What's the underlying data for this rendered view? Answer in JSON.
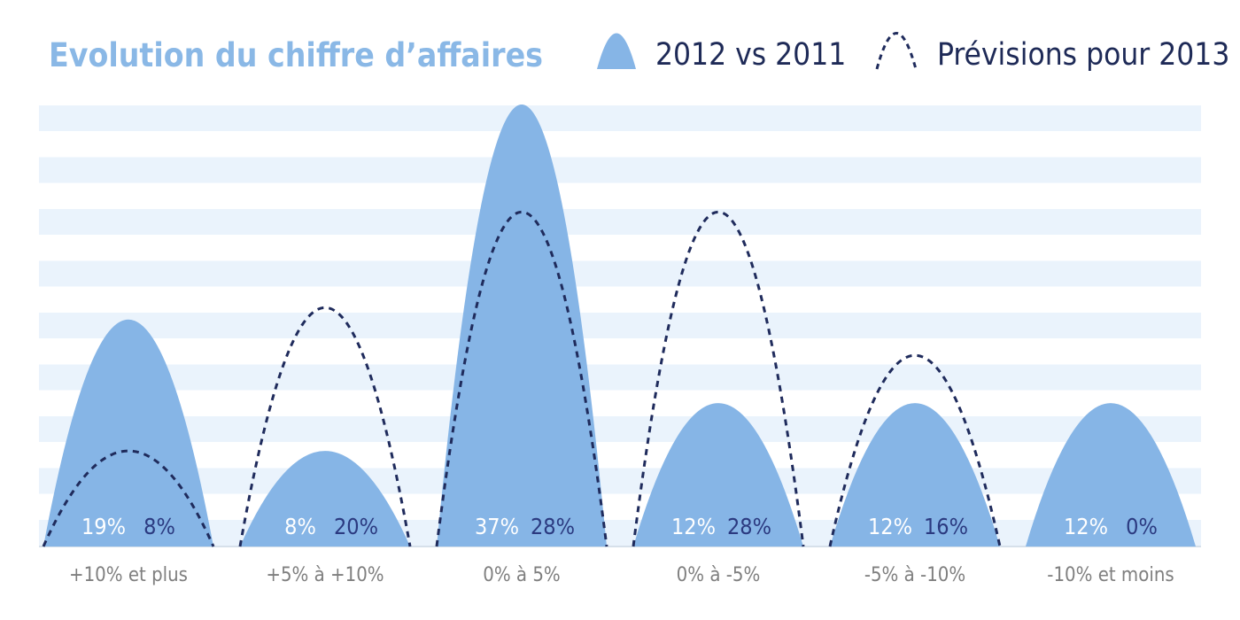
{
  "chart_data": {
    "type": "area",
    "title": "Evolution du chiffre d’affaires",
    "categories": [
      "+10% et plus",
      "+5% à +10%",
      "0% à 5%",
      "0% à -5%",
      "-5% à -10%",
      "-10% et moins"
    ],
    "series": [
      {
        "name": "2012 vs 2011",
        "values": [
          19,
          8,
          37,
          12,
          12,
          12
        ],
        "labels": [
          "19%",
          "8%",
          "37%",
          "12%",
          "12%",
          "12%"
        ],
        "style": "filled",
        "color": "#86b5e6",
        "label_color": "#ffffff"
      },
      {
        "name": "Prévisions pour 2013",
        "values": [
          8,
          20,
          28,
          28,
          16,
          0
        ],
        "labels": [
          "8%",
          "20%",
          "28%",
          "28%",
          "16%",
          "0%"
        ],
        "style": "dashed",
        "color": "#1f2b5c",
        "label_color": "#2b3a80"
      }
    ],
    "ylim": [
      0,
      37
    ],
    "grid": "horizontal-bands",
    "band_color": "#eaf3fc",
    "legend": "top-right"
  }
}
